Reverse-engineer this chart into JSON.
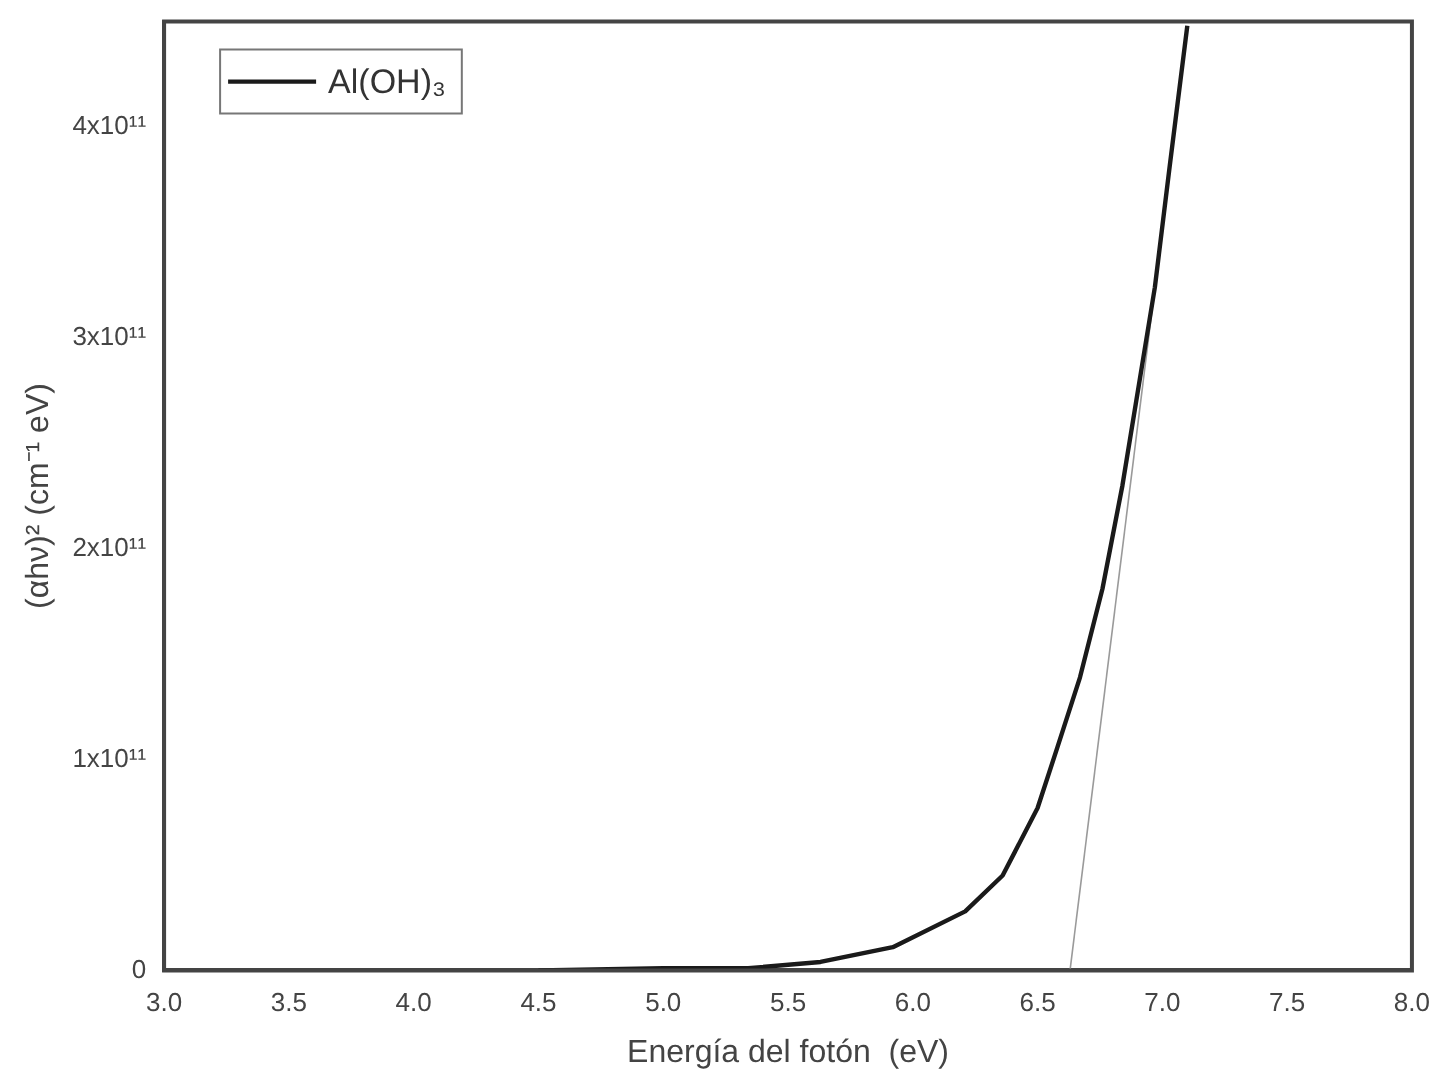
{
  "chart_data": {
    "type": "line",
    "xlabel": "Energía del fotón  (eV)",
    "ylabel": "(αhν)² (cm⁻¹ eV)",
    "xlim": [
      3.0,
      8.0
    ],
    "xticks": [
      {
        "value": 3,
        "label": "3.0"
      },
      {
        "value": 3.5,
        "label": "3.5"
      },
      {
        "value": 4,
        "label": "4.0"
      },
      {
        "value": 4.5,
        "label": "4.5"
      },
      {
        "value": 5,
        "label": "5.0"
      },
      {
        "value": 5.5,
        "label": "5.5"
      },
      {
        "value": 6,
        "label": "6.0"
      },
      {
        "value": 6.5,
        "label": "6.5"
      },
      {
        "value": 7,
        "label": "7.0"
      },
      {
        "value": 7.5,
        "label": "7.5"
      },
      {
        "value": 8,
        "label": "8.0"
      }
    ],
    "ylim": [
      0,
      450000000000
    ],
    "yticks": [
      0,
      {
        "value": 100000000000,
        "label": "1x10¹¹"
      },
      {
        "value": 200000000000,
        "label": "2x10¹¹"
      },
      {
        "value": 300000000000,
        "label": "3x10¹¹"
      },
      {
        "value": 400000000000,
        "label": "4x10¹¹"
      }
    ],
    "legend": "top left",
    "grid": false,
    "marker": "none",
    "line_style": "solid",
    "series": [
      {
        "name": "Al(OH)₃",
        "color": "#1a1a1a",
        "x": [
          4.5,
          5.0,
          5.34,
          5.63,
          5.92,
          6.21,
          6.36,
          6.5,
          6.58,
          6.67,
          6.76,
          6.84,
          6.97,
          7.03,
          7.1
        ],
        "values": [
          0,
          1000000000,
          1000000000,
          4000000000,
          11000000000,
          28000000000,
          45000000000,
          77000000000,
          106000000000,
          139000000000,
          181000000000,
          230000000000,
          324000000000,
          382000000000,
          448000000000
        ]
      },
      {
        "type": "line",
        "color": "#9a9a9a",
        "x": [
          6.63,
          6.97
        ],
        "values": [
          0,
          324000000000
        ]
      }
    ]
  }
}
